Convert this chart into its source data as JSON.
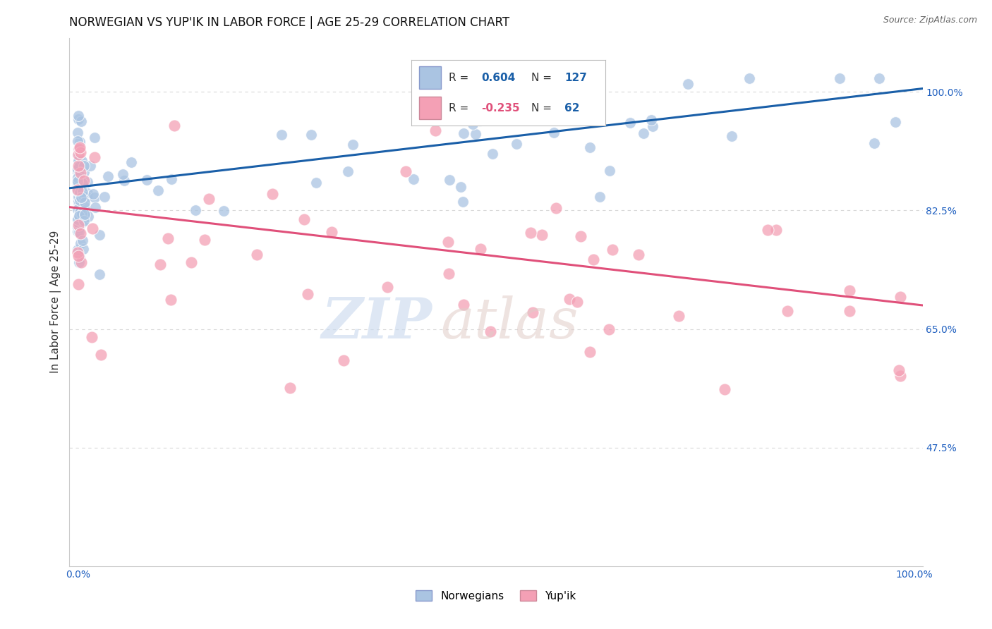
{
  "title": "NORWEGIAN VS YUP'IK IN LABOR FORCE | AGE 25-29 CORRELATION CHART",
  "source": "Source: ZipAtlas.com",
  "ylabel": "In Labor Force | Age 25-29",
  "norwegian_color": "#aac4e2",
  "norwegian_edge": "#aac4e2",
  "yupik_color": "#f4a0b5",
  "yupik_edge": "#f4a0b5",
  "trend_norwegian_color": "#1a5fa8",
  "trend_yupik_color": "#e0507a",
  "background_color": "#ffffff",
  "grid_color": "#d8d8d8",
  "ytick_color": "#2060c0",
  "xtick_color": "#2060c0",
  "R_norwegian": 0.604,
  "N_norwegian": 127,
  "R_yupik": -0.235,
  "N_yupik": 62,
  "title_fontsize": 12,
  "axis_label_fontsize": 11,
  "tick_fontsize": 10,
  "source_fontsize": 9,
  "legend_fontsize": 11,
  "watermark_zip_color": "#c8d8ee",
  "watermark_atlas_color": "#e0ccc8"
}
